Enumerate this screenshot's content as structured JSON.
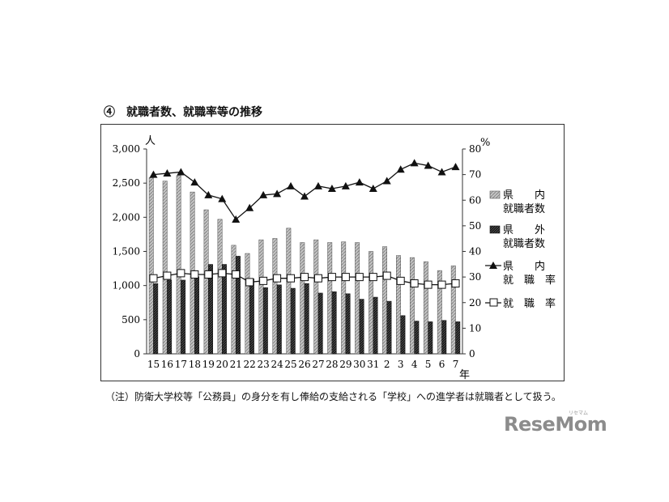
{
  "page": {
    "title": "④　就職者数、就職率等の推移",
    "footnote": "（注）防衛大学校等「公務員」の身分を有し俸給の支給される「学校」への進学者は就職者として扱う。",
    "watermark": "ReseMom",
    "watermark_sub": "リセマム"
  },
  "chart_data": {
    "type": "bar",
    "categories": [
      "15",
      "16",
      "17",
      "18",
      "19",
      "20",
      "21",
      "22",
      "23",
      "24",
      "25",
      "26",
      "27",
      "28",
      "29",
      "30",
      "31",
      "2",
      "3",
      "4",
      "5",
      "6",
      "7"
    ],
    "x_unit": "年",
    "y_left": {
      "unit": "人",
      "ylim": [
        0,
        3000
      ],
      "ticks": [
        "0",
        "500",
        "1,000",
        "1,500",
        "2,000",
        "2,500",
        "3,000"
      ]
    },
    "y_right": {
      "unit": "%",
      "ylim": [
        0,
        80
      ],
      "ticks": [
        "0",
        "10",
        "20",
        "30",
        "40",
        "50",
        "60",
        "70",
        "80"
      ]
    },
    "legend_position": "right",
    "series": [
      {
        "name": [
          "県　　内",
          "就職者数"
        ],
        "type": "bar",
        "axis": "left",
        "color": "#b0b0b0",
        "values": [
          2580,
          2530,
          2610,
          2370,
          2110,
          1970,
          1590,
          1470,
          1670,
          1690,
          1840,
          1630,
          1670,
          1630,
          1640,
          1630,
          1500,
          1570,
          1440,
          1410,
          1350,
          1220,
          1290
        ]
      },
      {
        "name": [
          "県　　外",
          "就職者数"
        ],
        "type": "bar",
        "axis": "left",
        "color": "#222222",
        "values": [
          1030,
          1080,
          1080,
          1130,
          1310,
          1310,
          1430,
          1100,
          970,
          1010,
          960,
          1030,
          890,
          910,
          880,
          800,
          830,
          770,
          560,
          480,
          470,
          490,
          470
        ]
      },
      {
        "name": [
          "県　　内",
          "就　職　率"
        ],
        "type": "line",
        "marker": "triangle",
        "axis": "right",
        "color": "#111111",
        "values": [
          70,
          70.5,
          71,
          67,
          62,
          60.5,
          52.5,
          57,
          62,
          62.5,
          65.5,
          61.5,
          65.5,
          64.5,
          65.5,
          67,
          64.5,
          67.5,
          72,
          74.5,
          73.5,
          71,
          73
        ]
      },
      {
        "name": [
          "就　職　率"
        ],
        "type": "line",
        "marker": "square",
        "axis": "right",
        "color": "#111111",
        "values": [
          29.5,
          30.5,
          31.5,
          31,
          31,
          31.5,
          31,
          28,
          28.5,
          29.5,
          29.5,
          30,
          29.5,
          30,
          30,
          30,
          30,
          30.5,
          28.5,
          27.5,
          27,
          27,
          27.5
        ]
      }
    ]
  }
}
